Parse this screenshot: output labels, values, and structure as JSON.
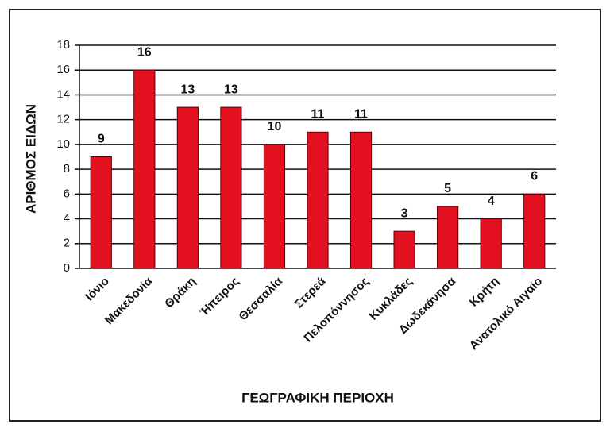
{
  "chart_data": {
    "type": "bar",
    "x_label": "ΓΕΩΓΡΑΦΙΚΗ ΠΕΡΙΟΧΗ",
    "y_label": "ΑΡΙΘΜΟΣ ΕΙΔΩΝ",
    "categories": [
      "Ιόνιο",
      "Μακεδονία",
      "Θράκη",
      "Ήπειρος",
      "Θεσσαλία",
      "Στερεά",
      "Πελοπόννησος",
      "Κυκλάδες",
      "Δωδεκάνησα",
      "Κρήτη",
      "Ανατολικό Αιγαίο"
    ],
    "values": [
      9,
      16,
      13,
      13,
      10,
      11,
      11,
      3,
      5,
      4,
      6
    ],
    "color": "#e3101f",
    "ylim": [
      0,
      18
    ],
    "yticks": [
      0,
      2,
      4,
      6,
      8,
      10,
      12,
      14,
      16,
      18
    ],
    "grid": true
  }
}
